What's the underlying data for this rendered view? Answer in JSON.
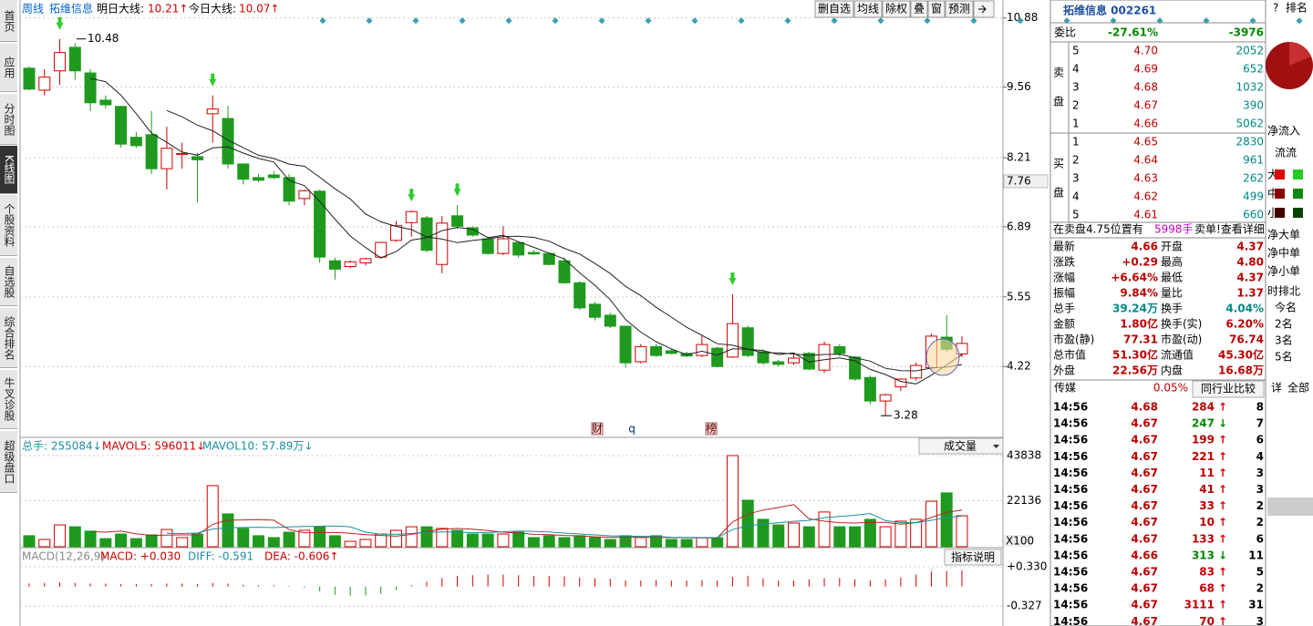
{
  "sidebar": [
    "首页",
    "应用",
    "分时图",
    "K线图",
    "个股资料",
    "自选股",
    "综合排名",
    "牛叉诊股",
    "超级盘口"
  ],
  "header": {
    "period": "周线",
    "name": "拓维信息",
    "tomorrow_label": "明日大线:",
    "tomorrow": "10.21↑",
    "today_label": "今日大线:",
    "today": "10.07↑",
    "buttons": [
      "删自选",
      "均线",
      "除权",
      "叠",
      "窗",
      "预测"
    ]
  },
  "chart_data": {
    "type": "candlestick",
    "ylim": [
      2.9,
      10.98
    ],
    "yticks": [
      10.88,
      9.56,
      8.21,
      6.89,
      5.55,
      4.22
    ],
    "grid": true,
    "cursor_price": 7.76,
    "high_label": 10.48,
    "low_label": 3.28,
    "markers": [
      "财",
      "q",
      "榜"
    ],
    "open": [
      9.92,
      9.5,
      9.87,
      10.32,
      9.83,
      9.31,
      9.19,
      8.6,
      8.65,
      8.0,
      8.27,
      8.23,
      9.05,
      8.96,
      8.09,
      7.83,
      7.88,
      7.83,
      7.43,
      7.57,
      6.24,
      6.13,
      6.2,
      6.31,
      6.63,
      6.97,
      7.06,
      6.17,
      7.1,
      6.87,
      6.66,
      6.38,
      6.59,
      6.4,
      6.38,
      6.24,
      5.82,
      5.41,
      5.2,
      4.99,
      4.31,
      4.6,
      4.52,
      4.47,
      4.43,
      4.57,
      4.4,
      4.96,
      4.5,
      4.31,
      4.29,
      4.47,
      4.15,
      4.6,
      4.4,
      4.01,
      3.56,
      3.83,
      4.0,
      4.2,
      4.78,
      4.46
    ],
    "high": [
      9.95,
      9.9,
      10.48,
      10.4,
      9.9,
      9.4,
      9.2,
      8.7,
      9.1,
      8.8,
      8.5,
      8.3,
      9.4,
      9.2,
      8.1,
      7.9,
      7.95,
      7.9,
      7.6,
      7.6,
      6.3,
      6.25,
      6.3,
      6.6,
      7.0,
      7.2,
      7.1,
      7.1,
      7.3,
      6.9,
      6.7,
      6.9,
      6.6,
      6.45,
      6.4,
      6.3,
      5.85,
      5.45,
      5.25,
      5.0,
      4.65,
      4.65,
      4.55,
      4.5,
      4.8,
      4.6,
      5.6,
      5.0,
      4.55,
      4.35,
      4.45,
      4.5,
      4.7,
      4.65,
      4.42,
      4.05,
      3.7,
      3.99,
      4.3,
      4.85,
      5.2,
      4.8
    ],
    "low": [
      9.5,
      9.4,
      9.6,
      9.7,
      9.1,
      9.15,
      8.4,
      8.4,
      7.9,
      7.6,
      8.0,
      7.36,
      8.5,
      8.0,
      7.7,
      7.75,
      7.8,
      7.3,
      7.3,
      6.2,
      5.88,
      6.1,
      6.15,
      6.28,
      6.6,
      6.7,
      6.4,
      6.0,
      6.85,
      6.7,
      6.35,
      6.35,
      6.3,
      6.35,
      6.15,
      5.8,
      5.3,
      5.1,
      4.95,
      4.2,
      4.28,
      4.4,
      4.45,
      4.4,
      4.4,
      4.2,
      4.38,
      4.4,
      4.25,
      4.22,
      4.25,
      4.15,
      4.1,
      4.42,
      3.95,
      3.5,
      3.28,
      3.75,
      3.95,
      4.15,
      4.5,
      4.4
    ],
    "close": [
      9.52,
      9.75,
      10.22,
      9.87,
      9.26,
      9.22,
      8.47,
      8.44,
      8.0,
      8.39,
      8.29,
      8.17,
      9.14,
      8.09,
      7.8,
      7.78,
      7.83,
      7.38,
      7.58,
      6.31,
      6.08,
      6.22,
      6.28,
      6.59,
      6.91,
      7.18,
      6.44,
      6.96,
      6.9,
      6.73,
      6.38,
      6.66,
      6.35,
      6.37,
      6.17,
      5.82,
      5.34,
      5.16,
      4.99,
      4.29,
      4.6,
      4.43,
      4.47,
      4.42,
      4.64,
      4.22,
      5.04,
      4.43,
      4.29,
      4.26,
      4.38,
      4.17,
      4.64,
      4.47,
      3.98,
      3.56,
      3.68,
      3.98,
      4.24,
      4.8,
      4.55,
      4.66
    ],
    "volume": [
      5300,
      3500,
      10500,
      9600,
      7500,
      3900,
      6100,
      3900,
      5700,
      8300,
      4400,
      6100,
      29400,
      15800,
      8800,
      5300,
      4400,
      7000,
      7900,
      9600,
      5300,
      2600,
      3500,
      6100,
      7900,
      9600,
      9600,
      8800,
      7900,
      6100,
      6100,
      6100,
      7000,
      4400,
      5300,
      4400,
      5300,
      4400,
      3500,
      5300,
      4400,
      5300,
      3500,
      3500,
      4400,
      4400,
      43838,
      22400,
      13200,
      10500,
      11400,
      9600,
      16700,
      9600,
      9600,
      13200,
      9600,
      12300,
      13200,
      21900,
      25900,
      14900
    ],
    "volume_ylim": [
      0,
      43838
    ],
    "volume_yticks": [
      43838,
      22136
    ],
    "volume_unit": "X100",
    "volume_legend": [
      "总手: 255084↓",
      "MAVOL5: 596011↓",
      "MAVOL10: 57.89万↓"
    ],
    "volume_selector": "成交量",
    "macd": [
      0.05,
      0.06,
      0.07,
      0.06,
      0.05,
      0.05,
      0.04,
      0.04,
      0.04,
      0.05,
      0.05,
      0.04,
      0.06,
      0.05,
      0.03,
      0.02,
      0.02,
      0.01,
      -0.02,
      -0.08,
      -0.14,
      -0.16,
      -0.15,
      -0.12,
      -0.06,
      0.02,
      0.08,
      0.14,
      0.18,
      0.19,
      0.2,
      0.2,
      0.19,
      0.18,
      0.18,
      0.17,
      0.15,
      0.14,
      0.13,
      0.1,
      0.1,
      0.11,
      0.1,
      0.1,
      0.11,
      0.1,
      0.16,
      0.18,
      0.14,
      0.1,
      0.1,
      0.12,
      0.14,
      0.14,
      0.12,
      0.1,
      0.12,
      0.15,
      0.2,
      0.25,
      0.26,
      0.27
    ],
    "macd_ylim": [
      -0.66,
      0.62
    ],
    "macd_yticks": [
      {
        "value": 0.33,
        "label": "+0.330"
      },
      -0.327
    ],
    "macd_legend": [
      "MACD(12,26,9)",
      "MACD: +0.030",
      "DIFF: -0.591",
      "DEA: -0.606↑"
    ],
    "macd_button": "指标说明"
  },
  "quote": {
    "title": "拓维信息 002261",
    "weibi_label": "委比",
    "weibi": [
      "-27.61%",
      "-3976"
    ],
    "sell_label": [
      "卖",
      "盘"
    ],
    "buy_label": [
      "买",
      "盘"
    ],
    "sell": [
      [
        "5",
        "4.70",
        "2052"
      ],
      [
        "4",
        "4.69",
        "652"
      ],
      [
        "3",
        "4.68",
        "1032"
      ],
      [
        "2",
        "4.67",
        "390"
      ],
      [
        "1",
        "4.66",
        "5062"
      ]
    ],
    "buy": [
      [
        "1",
        "4.65",
        "2830"
      ],
      [
        "2",
        "4.64",
        "961"
      ],
      [
        "3",
        "4.63",
        "262"
      ],
      [
        "4",
        "4.62",
        "499"
      ],
      [
        "5",
        "4.61",
        "660"
      ]
    ],
    "notice": [
      "在卖盘4.75位置有",
      "5998手",
      "卖单!查看详细"
    ],
    "stats": [
      [
        "最新",
        "4.66",
        "开盘",
        "4.37"
      ],
      [
        "涨跌",
        "+0.29",
        "最高",
        "4.80"
      ],
      [
        "涨幅",
        "+6.64%",
        "最低",
        "4.37"
      ],
      [
        "振幅",
        "9.84%",
        "量比",
        "1.37"
      ],
      [
        "总手",
        "39.24万",
        "换手",
        "4.04%"
      ],
      [
        "金额",
        "1.80亿",
        "换手(实)",
        "6.20%"
      ],
      [
        "市盈(静)",
        "77.31",
        "市盈(动)",
        "76.74"
      ],
      [
        "总市值",
        "51.30亿",
        "流通值",
        "45.30亿"
      ],
      [
        "外盘",
        "22.56万",
        "内盘",
        "16.68万"
      ]
    ],
    "industry": [
      "传媒",
      "0.05%",
      "同行业比较"
    ],
    "trades": [
      [
        "14:56",
        "4.68",
        "284",
        "↑",
        "8"
      ],
      [
        "14:56",
        "4.67",
        "247",
        "↓",
        "7"
      ],
      [
        "14:56",
        "4.67",
        "199",
        "↑",
        "6"
      ],
      [
        "14:56",
        "4.67",
        "221",
        "↑",
        "4"
      ],
      [
        "14:56",
        "4.67",
        "11",
        "↑",
        "3"
      ],
      [
        "14:56",
        "4.67",
        "41",
        "↑",
        "3"
      ],
      [
        "14:56",
        "4.67",
        "33",
        "↑",
        "2"
      ],
      [
        "14:56",
        "4.67",
        "10",
        "↑",
        "2"
      ],
      [
        "14:56",
        "4.67",
        "133",
        "↑",
        "6"
      ],
      [
        "14:56",
        "4.66",
        "313",
        "↓",
        "11"
      ],
      [
        "14:56",
        "4.67",
        "83",
        "↑",
        "5"
      ],
      [
        "14:56",
        "4.67",
        "68",
        "↑",
        "2"
      ],
      [
        "14:56",
        "4.67",
        "3111",
        "↑",
        "31"
      ],
      [
        "14:56",
        "4.67",
        "70",
        "↑",
        "3"
      ]
    ]
  },
  "side": {
    "top": [
      "?",
      "排名"
    ],
    "flow": [
      "净流入",
      "流流"
    ],
    "sizes": [
      "大",
      "中",
      "小"
    ],
    "net": [
      "净大单",
      "净中单",
      "净小单"
    ],
    "rank_title": "时排北",
    "ranks": [
      "今名",
      "2名",
      "3名",
      "5名"
    ],
    "tabs": [
      "详",
      "全部"
    ]
  }
}
